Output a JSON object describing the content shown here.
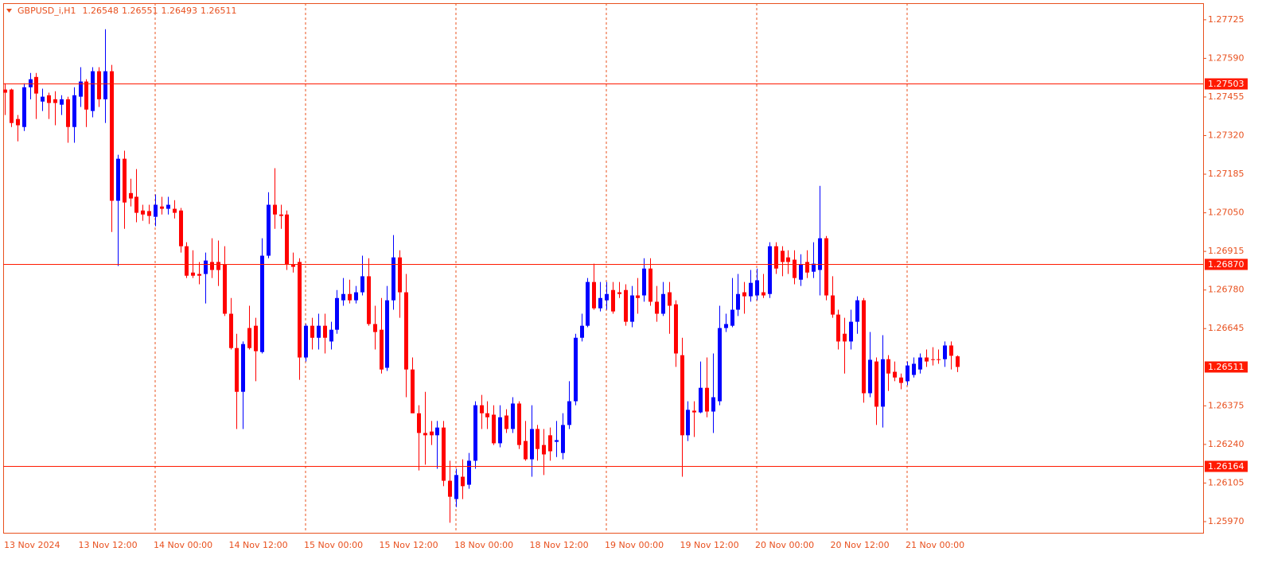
{
  "chart_data": {
    "type": "candlestick",
    "title": "GBPUSD_i,H1",
    "categories": [
      "13 Nov 2024",
      null,
      null,
      null,
      null,
      null,
      null,
      null,
      null,
      null,
      null,
      null,
      "13 Nov 12:00",
      null,
      null,
      null,
      null,
      null,
      null,
      null,
      null,
      null,
      null,
      null,
      "14 Nov 00:00",
      null,
      null,
      null,
      null,
      null,
      null,
      null,
      null,
      null,
      null,
      null,
      "14 Nov 12:00",
      null,
      null,
      null,
      null,
      null,
      null,
      null,
      null,
      null,
      null,
      null,
      "15 Nov 00:00",
      null,
      null,
      null,
      null,
      null,
      null,
      null,
      null,
      null,
      null,
      null,
      "15 Nov 12:00",
      null,
      null,
      null,
      null,
      null,
      null,
      null,
      null,
      null,
      null,
      null,
      "18 Nov 00:00",
      null,
      null,
      null,
      null,
      null,
      null,
      null,
      null,
      null,
      null,
      null,
      "18 Nov 12:00",
      null,
      null,
      null,
      null,
      null,
      null,
      null,
      null,
      null,
      null,
      null,
      "19 Nov 00:00",
      null,
      null,
      null,
      null,
      null,
      null,
      null,
      null,
      null,
      null,
      null,
      "19 Nov 12:00",
      null,
      null,
      null,
      null,
      null,
      null,
      null,
      null,
      null,
      null,
      null,
      "20 Nov 00:00",
      null,
      null,
      null,
      null,
      null,
      null,
      null,
      null,
      null,
      null,
      null,
      "20 Nov 12:00",
      null,
      null,
      null,
      null,
      null,
      null,
      null,
      null,
      null,
      null,
      null,
      "21 Nov 00:00",
      null,
      null,
      null,
      null,
      null,
      null,
      null,
      null
    ],
    "open": [
      1.27481,
      1.27481,
      1.27378,
      1.2735,
      1.27489,
      1.27525,
      1.27439,
      1.27461,
      1.27447,
      1.27428,
      1.27447,
      1.2735,
      1.27456,
      1.27509,
      1.27406,
      1.27545,
      1.27447,
      1.27545,
      1.27092,
      1.27239,
      1.27119,
      1.27106,
      1.27058,
      1.27056,
      1.27036,
      1.27072,
      1.27064,
      1.27064,
      1.27058,
      1.26933,
      1.26841,
      1.26836,
      1.26836,
      1.26878,
      1.26878,
      1.26869,
      1.26697,
      1.26577,
      1.26424,
      1.26647,
      1.26655,
      1.26563,
      1.269,
      1.27078,
      1.27044,
      1.27044,
      1.26869,
      1.26878,
      1.26544,
      1.26655,
      1.26613,
      1.26655,
      1.266,
      1.26641,
      1.26744,
      1.26766,
      1.26744,
      1.26772,
      1.26828,
      1.26661,
      1.26641,
      1.26508,
      1.26744,
      1.26894,
      1.26772,
      1.26502,
      1.26349,
      1.2628,
      1.26285,
      1.26272,
      1.26299,
      1.26113,
      1.26049,
      1.26127,
      1.26099,
      1.26183,
      1.26377,
      1.26349,
      1.26344,
      1.26244,
      1.26341,
      1.26294,
      1.26383,
      1.26252,
      1.26188,
      1.26294,
      1.26238,
      1.26272,
      1.26249,
      1.2621,
      1.26308,
      1.26391,
      1.26613,
      1.26655,
      1.26808,
      1.26716,
      1.26744,
      1.2678,
      1.26772,
      1.2678,
      1.26669,
      1.26761,
      1.26761,
      1.26855,
      1.26739,
      1.26697,
      1.26772,
      1.2673,
      1.26552,
      1.26272,
      1.26358,
      1.26352,
      1.26438,
      1.26355,
      1.26391,
      1.26647,
      1.26655,
      1.26711,
      1.26772,
      1.26758,
      1.26761,
      1.26772,
      1.26766,
      1.26933,
      1.26917,
      1.26894,
      1.26886,
      1.26816,
      1.26878,
      1.26844,
      1.2685,
      1.26961,
      1.26761,
      1.26694,
      1.26627,
      1.266,
      1.26669,
      1.26744,
      1.26419,
      1.2653,
      1.26372,
      1.26538,
      1.26494,
      1.26474,
      1.26461,
      1.26483,
      1.26502,
      1.26544,
      1.26538,
      1.26538,
      1.26538,
      1.26586,
      1.26548
    ],
    "high": [
      1.27503,
      1.27484,
      1.27392,
      1.27503,
      1.27539,
      1.27539,
      1.27484,
      1.2747,
      1.27475,
      1.27461,
      1.27456,
      1.27489,
      1.27559,
      1.27517,
      1.27559,
      1.27559,
      1.27692,
      1.27567,
      1.27253,
      1.27267,
      1.27169,
      1.27203,
      1.27078,
      1.27078,
      1.27114,
      1.27106,
      1.27106,
      1.27094,
      1.27067,
      1.26947,
      1.26919,
      1.26878,
      1.26911,
      1.26961,
      1.26953,
      1.26933,
      1.26752,
      1.26627,
      1.266,
      1.26725,
      1.26683,
      1.26961,
      1.27122,
      1.27206,
      1.27078,
      1.27058,
      1.26911,
      1.26891,
      1.26661,
      1.26683,
      1.26697,
      1.26697,
      1.26669,
      1.2678,
      1.26822,
      1.26816,
      1.26794,
      1.269,
      1.26891,
      1.26725,
      1.26752,
      1.26794,
      1.26972,
      1.26919,
      1.26836,
      1.26544,
      1.26377,
      1.26424,
      1.26322,
      1.26322,
      1.26322,
      1.26183,
      1.26155,
      1.26188,
      1.2621,
      1.26391,
      1.26413,
      1.26391,
      1.26377,
      1.26377,
      1.26363,
      1.26405,
      1.26391,
      1.26322,
      1.26377,
      1.26308,
      1.26294,
      1.26299,
      1.26322,
      1.26349,
      1.26461,
      1.26627,
      1.26697,
      1.26822,
      1.26872,
      1.26808,
      1.26808,
      1.26808,
      1.26808,
      1.268,
      1.26794,
      1.26822,
      1.26891,
      1.26891,
      1.26794,
      1.26808,
      1.26808,
      1.26744,
      1.26613,
      1.26391,
      1.26391,
      1.2653,
      1.26544,
      1.26558,
      1.26725,
      1.26697,
      1.26822,
      1.26836,
      1.26808,
      1.2685,
      1.26855,
      1.26836,
      1.26947,
      1.26947,
      1.26933,
      1.26919,
      1.26919,
      1.26905,
      1.26919,
      1.26947,
      1.27144,
      1.26969,
      1.26828,
      1.26711,
      1.26683,
      1.26711,
      1.26758,
      1.26752,
      1.26633,
      1.26544,
      1.26622,
      1.26552,
      1.2653,
      1.26488,
      1.2653,
      1.26544,
      1.26558,
      1.26572,
      1.2658,
      1.26572,
      1.266,
      1.266,
      1.26551
    ],
    "low": [
      1.27392,
      1.2735,
      1.273,
      1.27336,
      1.27447,
      1.27378,
      1.27406,
      1.27378,
      1.27356,
      1.27392,
      1.27295,
      1.27295,
      1.2742,
      1.2735,
      1.27384,
      1.2742,
      1.27364,
      1.26983,
      1.26864,
      1.26994,
      1.27072,
      1.27017,
      1.27022,
      1.27011,
      1.27003,
      1.27044,
      1.27044,
      1.2703,
      1.26911,
      1.26822,
      1.26822,
      1.268,
      1.26733,
      1.26822,
      1.26794,
      1.26689,
      1.26572,
      1.26294,
      1.26294,
      1.26572,
      1.26461,
      1.26558,
      1.26891,
      1.26994,
      1.26994,
      1.2685,
      1.26841,
      1.26466,
      1.2653,
      1.26572,
      1.26572,
      1.26558,
      1.26572,
      1.26627,
      1.26725,
      1.26733,
      1.26733,
      1.26761,
      1.26655,
      1.26572,
      1.26488,
      1.26497,
      1.26711,
      1.26683,
      1.26405,
      1.26349,
      1.26149,
      1.26169,
      1.26238,
      1.26155,
      1.26094,
      1.25966,
      1.26021,
      1.26049,
      1.26085,
      1.26155,
      1.26294,
      1.26294,
      1.26238,
      1.2623,
      1.2628,
      1.2628,
      1.26224,
      1.26183,
      1.26127,
      1.26183,
      1.26133,
      1.26183,
      1.26196,
      1.26188,
      1.26294,
      1.26377,
      1.266,
      1.2665,
      1.26711,
      1.26705,
      1.26711,
      1.26697,
      1.26752,
      1.26655,
      1.2665,
      1.26697,
      1.26739,
      1.26725,
      1.26669,
      1.26689,
      1.26627,
      1.26511,
      1.26127,
      1.26252,
      1.26266,
      1.26349,
      1.26335,
      1.2628,
      1.26377,
      1.26633,
      1.2665,
      1.26689,
      1.26697,
      1.26739,
      1.26744,
      1.26752,
      1.26752,
      1.26836,
      1.26828,
      1.26836,
      1.268,
      1.26794,
      1.26822,
      1.26822,
      1.26761,
      1.26744,
      1.26683,
      1.26572,
      1.26488,
      1.26572,
      1.26627,
      1.26386,
      1.26405,
      1.26308,
      1.26299,
      1.26427,
      1.26461,
      1.26433,
      1.26447,
      1.26474,
      1.26488,
      1.26511,
      1.26516,
      1.26522,
      1.26511,
      1.26502,
      1.26493
    ],
    "close": [
      1.2747,
      1.27364,
      1.27356,
      1.27489,
      1.27517,
      1.27467,
      1.27456,
      1.27434,
      1.27434,
      1.27447,
      1.2735,
      1.27461,
      1.27509,
      1.27411,
      1.27545,
      1.27447,
      1.27545,
      1.27092,
      1.27239,
      1.27086,
      1.271,
      1.2705,
      1.27044,
      1.27039,
      1.27078,
      1.27064,
      1.27078,
      1.2705,
      1.26933,
      1.2683,
      1.2683,
      1.2683,
      1.26883,
      1.2685,
      1.2685,
      1.26697,
      1.26577,
      1.26424,
      1.26591,
      1.26577,
      1.26566,
      1.269,
      1.27078,
      1.27044,
      1.27039,
      1.26869,
      1.26861,
      1.26544,
      1.26655,
      1.26613,
      1.26655,
      1.26613,
      1.26641,
      1.26752,
      1.26766,
      1.26744,
      1.26772,
      1.26828,
      1.26661,
      1.26633,
      1.26502,
      1.26744,
      1.26894,
      1.26772,
      1.26502,
      1.26349,
      1.2628,
      1.26272,
      1.26272,
      1.26299,
      1.26113,
      1.26057,
      1.26133,
      1.26094,
      1.26183,
      1.26377,
      1.26349,
      1.26335,
      1.26244,
      1.26335,
      1.26294,
      1.26383,
      1.26238,
      1.26188,
      1.26294,
      1.26224,
      1.26205,
      1.26216,
      1.26255,
      1.26308,
      1.26391,
      1.26613,
      1.26655,
      1.26808,
      1.26716,
      1.26752,
      1.26766,
      1.26705,
      1.26766,
      1.26669,
      1.26761,
      1.26752,
      1.26855,
      1.26739,
      1.26697,
      1.26766,
      1.26725,
      1.26558,
      1.26272,
      1.26361,
      1.26352,
      1.26438,
      1.26355,
      1.26405,
      1.26647,
      1.26661,
      1.26711,
      1.26766,
      1.26758,
      1.26805,
      1.26814,
      1.26761,
      1.26933,
      1.26855,
      1.26878,
      1.26878,
      1.26822,
      1.26869,
      1.26841,
      1.26872,
      1.26961,
      1.26761,
      1.26694,
      1.266,
      1.266,
      1.26669,
      1.26744,
      1.26419,
      1.26536,
      1.26372,
      1.26538,
      1.26488,
      1.26474,
      1.26455,
      1.26516,
      1.26522,
      1.26544,
      1.2653,
      1.26536,
      1.26536,
      1.26586,
      1.2655,
      1.26511
    ],
    "up_color": "#0000ff",
    "down_color": "#ff0000",
    "level_color": "#ff1a00",
    "ylim": [
      1.25931,
      1.27783
    ],
    "yticks": [
      1.27725,
      {
        "value": 1.2759,
        "label": "1.27590"
      },
      1.27455,
      {
        "value": 1.2732,
        "label": "1.27320"
      },
      1.27185,
      {
        "value": 1.2705,
        "label": "1.27050"
      },
      1.26915,
      {
        "value": 1.2678,
        "label": "1.26780"
      },
      1.26645,
      1.26375,
      {
        "value": 1.2624,
        "label": "1.26240"
      },
      1.26105,
      {
        "value": 1.2597,
        "label": "1.25970"
      }
    ],
    "levels": [
      1.27503,
      {
        "value": 1.2687,
        "label": "1.26870"
      },
      1.26164
    ],
    "bid": 1.26511,
    "grid": true
  }
}
